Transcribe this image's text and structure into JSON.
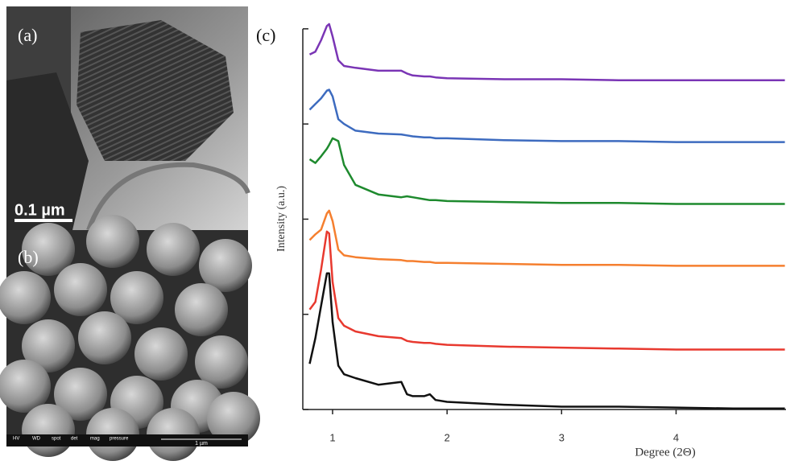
{
  "figure": {
    "panel_a": {
      "label": "(a)",
      "scale": "0.1 µm"
    },
    "panel_b": {
      "label": "(b)",
      "scale": "1 µm",
      "info": [
        "HV",
        "WD",
        "spot",
        "det",
        "mag",
        "pressure"
      ]
    }
  },
  "chart_data": {
    "type": "line",
    "label": "(c)",
    "x_label": "Degree (2Θ)",
    "y_label": "Intensity (a.u.)",
    "x": [
      0.8,
      0.85,
      0.9,
      0.95,
      0.97,
      1.0,
      1.05,
      1.1,
      1.2,
      1.4,
      1.6,
      1.65,
      1.7,
      1.8,
      1.85,
      1.9,
      2.0,
      2.5,
      3,
      3.5,
      4,
      4.5,
      4.95
    ],
    "xlim": [
      0.74,
      4.96
    ],
    "xticks": [
      1,
      2,
      3,
      4
    ],
    "ylim": [
      0,
      4.1
    ],
    "yticks": [
      0,
      1,
      2,
      3,
      4
    ],
    "series": [
      {
        "color": "#111111",
        "values": [
          0.48,
          0.75,
          1.09,
          1.43,
          1.43,
          0.92,
          0.46,
          0.37,
          0.33,
          0.26,
          0.29,
          0.16,
          0.14,
          0.14,
          0.16,
          0.1,
          0.08,
          0.05,
          0.03,
          0.03,
          0.02,
          0.01,
          0.01
        ]
      },
      {
        "color": "#e8392f",
        "values": [
          1.05,
          1.13,
          1.47,
          1.87,
          1.85,
          1.34,
          0.96,
          0.88,
          0.82,
          0.77,
          0.75,
          0.72,
          0.71,
          0.7,
          0.7,
          0.69,
          0.68,
          0.66,
          0.65,
          0.64,
          0.63,
          0.63,
          0.63
        ]
      },
      {
        "color": "#f57f2f",
        "values": [
          1.78,
          1.84,
          1.89,
          2.06,
          2.09,
          1.98,
          1.68,
          1.62,
          1.6,
          1.58,
          1.57,
          1.56,
          1.56,
          1.55,
          1.55,
          1.54,
          1.54,
          1.53,
          1.52,
          1.52,
          1.51,
          1.51,
          1.51
        ]
      },
      {
        "color": "#1e8a2e",
        "values": [
          2.63,
          2.59,
          2.66,
          2.74,
          2.78,
          2.85,
          2.82,
          2.57,
          2.36,
          2.26,
          2.23,
          2.24,
          2.23,
          2.21,
          2.2,
          2.2,
          2.19,
          2.18,
          2.17,
          2.17,
          2.16,
          2.16,
          2.16
        ]
      },
      {
        "color": "#3d6bbf",
        "values": [
          3.15,
          3.21,
          3.27,
          3.35,
          3.36,
          3.29,
          3.05,
          3.0,
          2.93,
          2.9,
          2.89,
          2.88,
          2.87,
          2.86,
          2.86,
          2.85,
          2.85,
          2.83,
          2.82,
          2.82,
          2.81,
          2.81,
          2.81
        ]
      },
      {
        "color": "#7a35b5",
        "values": [
          3.73,
          3.76,
          3.88,
          4.03,
          4.05,
          3.92,
          3.67,
          3.61,
          3.59,
          3.56,
          3.56,
          3.53,
          3.51,
          3.5,
          3.5,
          3.49,
          3.48,
          3.47,
          3.47,
          3.46,
          3.46,
          3.46,
          3.46
        ]
      }
    ]
  }
}
